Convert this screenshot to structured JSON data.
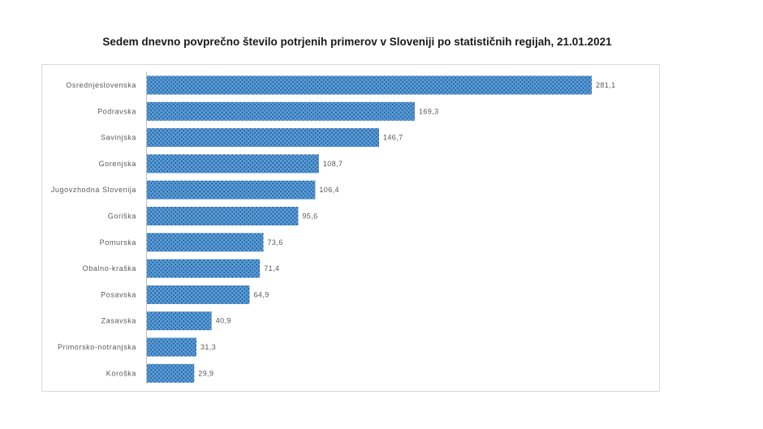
{
  "chart_data": {
    "type": "bar",
    "orientation": "horizontal",
    "title": "Sedem dnevno povprečno število potrjenih primerov v Sloveniji po statističnih regijah, 21.01.2021",
    "categories": [
      "Osrednjeslovenska",
      "Podravska",
      "Savinjska",
      "Gorenjska",
      "Jugovzhodna Slovenija",
      "Goriška",
      "Pomurska",
      "Obalno-kraška",
      "Posavska",
      "Zasavska",
      "Primorsko-notranjska",
      "Koroška"
    ],
    "values": [
      281.1,
      169.3,
      146.7,
      108.7,
      106.4,
      95.6,
      73.6,
      71.4,
      64.9,
      40.9,
      31.3,
      29.9
    ],
    "value_labels": [
      "281,1",
      "169,3",
      "146,7",
      "108,7",
      "106,4",
      "95,6",
      "73,6",
      "71,4",
      "64,9",
      "40,9",
      "31,3",
      "29,9"
    ],
    "xlabel": "",
    "ylabel": "",
    "grid": false,
    "legend": "none",
    "bar_color": "#5b9bd5",
    "pattern_color": "#1f5f9e"
  }
}
